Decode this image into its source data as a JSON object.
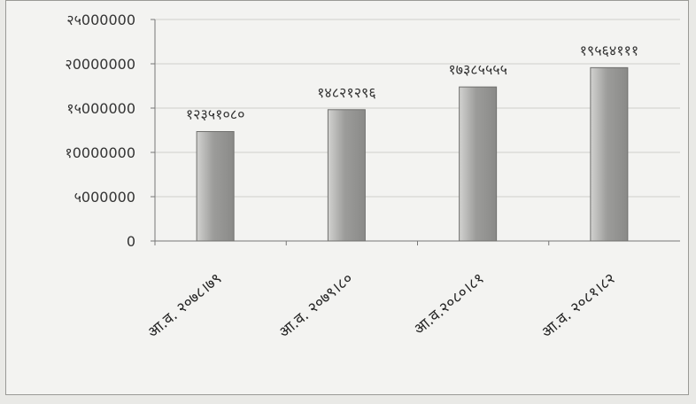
{
  "chart_data": {
    "type": "bar",
    "title": "",
    "xlabel": "",
    "ylabel": "",
    "categories": [
      "आ.व. २०७८।७९",
      "आ.व. २०७९।८०",
      "आ.व.२०८०।८१",
      "आ.व. २०८१।८२"
    ],
    "values": [
      12351080,
      14821296,
      17385555,
      19564111
    ],
    "data_labels": [
      "१२३५१०८०",
      "१४८२१२९६",
      "१७३८५५५५",
      "१९५६४१११"
    ],
    "ylim": [
      0,
      25000000
    ],
    "yticks": [
      0,
      5000000,
      10000000,
      15000000,
      20000000,
      25000000
    ],
    "ytick_labels": [
      "0",
      "५000000",
      "१0000000",
      "१५000000",
      "२0000000",
      "२५000000"
    ],
    "grid": true,
    "legend": "none",
    "colors": {
      "bar": "#9c9c9a",
      "bar_top": "#d2d2d0",
      "grid": "#cfcfcc",
      "axis": "#777777"
    }
  }
}
